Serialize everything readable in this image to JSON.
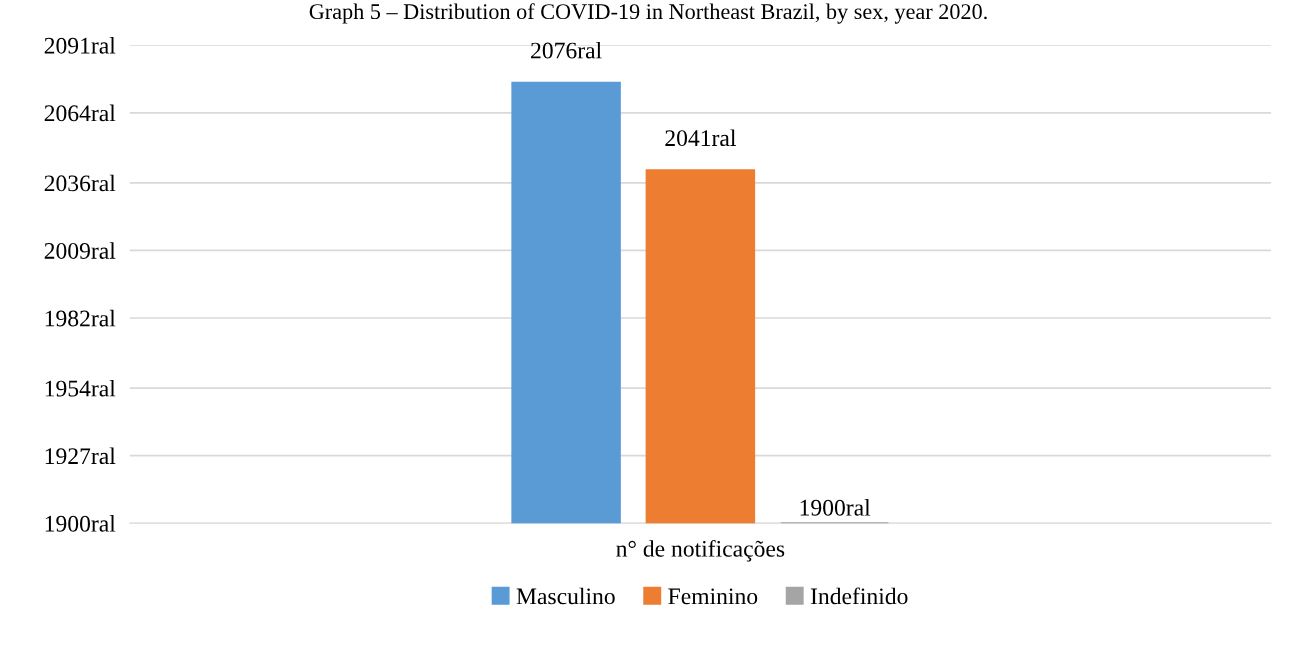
{
  "chart_data": {
    "type": "bar",
    "title": "Graph 5 – Distribution of COVID-19 in Northeast Brazil, by sex, year 2020.",
    "categories": [
      "n° de notificações"
    ],
    "series": [
      {
        "name": "Masculino",
        "color": "#5b9bd5",
        "values": [
          2076
        ],
        "value_labels": [
          "2076ral"
        ]
      },
      {
        "name": "Feminino",
        "color": "#ed7d31",
        "values": [
          2041
        ],
        "value_labels": [
          "2041ral"
        ]
      },
      {
        "name": "Indefinido",
        "color": "#a5a5a5",
        "values": [
          1900
        ],
        "value_labels": [
          "1900ral"
        ]
      }
    ],
    "ylim": [
      1900,
      2091
    ],
    "yticks": [
      {
        "value": 1900,
        "label": "1900ral"
      },
      {
        "value": 1927,
        "label": "1927ral"
      },
      {
        "value": 1954,
        "label": "1954ral"
      },
      {
        "value": 1982,
        "label": "1982ral"
      },
      {
        "value": 2009,
        "label": "2009ral"
      },
      {
        "value": 2036,
        "label": "2036ral"
      },
      {
        "value": 2064,
        "label": "2064ral"
      },
      {
        "value": 2091,
        "label": "2091ral"
      }
    ],
    "grid": "y",
    "legend": "bottom"
  }
}
